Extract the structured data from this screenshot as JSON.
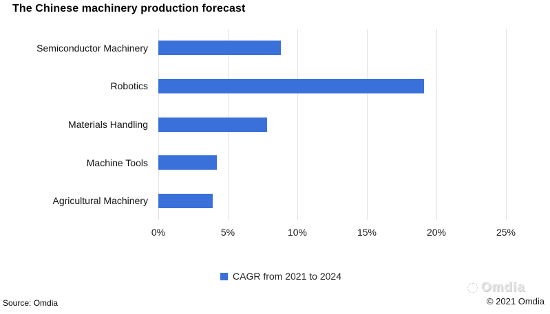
{
  "title": "The Chinese machinery production forecast",
  "chart_data": {
    "type": "bar",
    "orientation": "horizontal",
    "title": "The Chinese machinery production forecast",
    "categories": [
      "Semiconductor Machinery",
      "Robotics",
      "Materials Handling",
      "Machine Tools",
      "Agricultural Machinery"
    ],
    "series": [
      {
        "name": "CAGR from 2021 to 2024",
        "values": [
          8.8,
          19.1,
          7.8,
          4.2,
          3.9
        ]
      }
    ],
    "x_tick_labels": [
      "0%",
      "5%",
      "10%",
      "15%",
      "20%",
      "25%"
    ],
    "x_tick_values": [
      0,
      5,
      10,
      15,
      20,
      25
    ],
    "xlim": [
      0,
      25
    ],
    "xlabel": "",
    "ylabel": "",
    "grid": true,
    "bar_color": "#3a70d9",
    "gridline_color": "#e2e2e2",
    "legend_position": "bottom"
  },
  "legend": {
    "swatch_color": "#3a70d9",
    "label": "CAGR from 2021 to 2024"
  },
  "footer": {
    "source": "Source: Omdia",
    "brand": "Omdia",
    "copyright": "© 2021 Omdia"
  }
}
